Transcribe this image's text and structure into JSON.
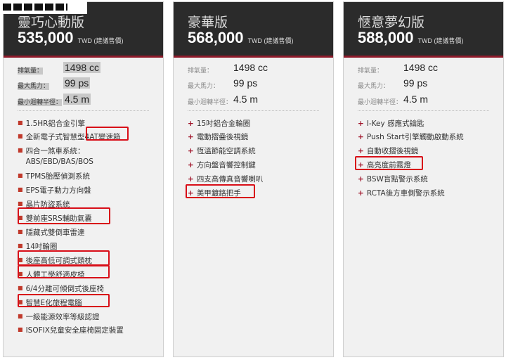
{
  "watermark": "MOBILE01",
  "currency_note": "TWD (建議售價)",
  "spec_labels": [
    "排氣量：",
    "最大馬力：",
    "最小迴轉半徑："
  ],
  "panels": [
    {
      "title": "靈巧心動版",
      "price": "535,000",
      "specs": [
        "1498 cc",
        "99 ps",
        "4.5 m"
      ],
      "features": [
        "1.5HR鋁合金引擎",
        "全新電子式智慧型4AT變速箱",
        "四合一煞車系統：",
        "ABS/EBD/BAS/BOS",
        "TPMS胎壓偵測系統",
        "EPS電子動力方向盤",
        "晶片防盜系統",
        "雙前座SRS輔助氣囊",
        "隱藏式雙倒車雷達",
        "14吋輪圈",
        "後座高低可調式頭枕",
        "人體工學舒適皮椅",
        "6/4分離可傾倒式後座椅",
        "智慧E化旅程電腦",
        "一級能源效率等級認證",
        "ISOFIX兒童安全座椅固定裝置"
      ]
    },
    {
      "title": "豪華版",
      "price": "568,000",
      "specs": [
        "1498 cc",
        "99 ps",
        "4.5 m"
      ],
      "features": [
        "15吋鋁合金輪圈",
        "電動摺疊後視鏡",
        "恆溫節能空調系統",
        "方向盤音響控制鍵",
        "四支高傳真音響喇叭",
        "美甲鍍鉻把手"
      ]
    },
    {
      "title": "愜意夢幻版",
      "price": "588,000",
      "specs": [
        "1498 cc",
        "99 ps",
        "4.5 m"
      ],
      "features": [
        "I-Key 感應式鑰匙",
        "Push Start引擎觸動啟動系統",
        "自動收摺後視鏡",
        "高亮度前霧燈",
        "BSW盲點警示系統",
        "RCTA後方車側警示系統"
      ]
    }
  ],
  "colors": {
    "header": "#2b2b2b",
    "accent": "#8e1b2b",
    "highlight_box": "#d80e18"
  }
}
